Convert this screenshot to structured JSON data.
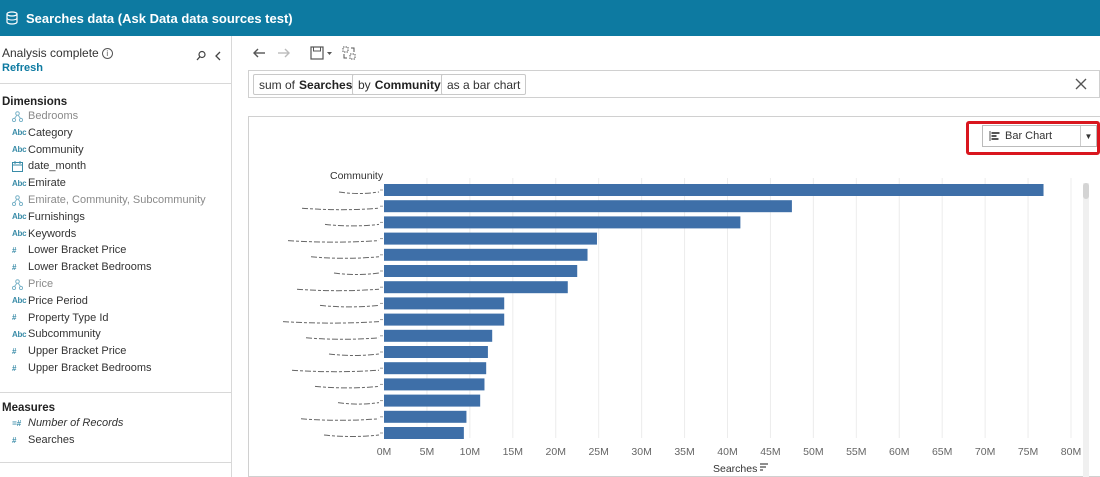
{
  "app": {
    "title": "Searches data (Ask Data data sources test)"
  },
  "sidebar": {
    "status": "Analysis complete",
    "refresh_label": "Refresh",
    "dimensions_label": "Dimensions",
    "dimensions": [
      {
        "label": "Bedrooms",
        "type": "hierarchy",
        "dim": true
      },
      {
        "label": "Category",
        "type": "abc",
        "dim": false
      },
      {
        "label": "Community",
        "type": "abc",
        "dim": false
      },
      {
        "label": "date_month",
        "type": "date",
        "dim": false
      },
      {
        "label": "Emirate",
        "type": "abc",
        "dim": false
      },
      {
        "label": "Emirate, Community, Subcommunity",
        "type": "hierarchy",
        "dim": true
      },
      {
        "label": "Furnishings",
        "type": "abc",
        "dim": false
      },
      {
        "label": "Keywords",
        "type": "abc",
        "dim": false
      },
      {
        "label": "Lower Bracket Price",
        "type": "number",
        "dim": false
      },
      {
        "label": "Lower Bracket Bedrooms",
        "type": "number",
        "dim": false
      },
      {
        "label": "Price",
        "type": "hierarchy",
        "dim": true
      },
      {
        "label": "Price Period",
        "type": "abc",
        "dim": false
      },
      {
        "label": "Property Type Id",
        "type": "number",
        "dim": false
      },
      {
        "label": "Subcommunity",
        "type": "abc",
        "dim": false
      },
      {
        "label": "Upper Bracket Price",
        "type": "number",
        "dim": false
      },
      {
        "label": "Upper Bracket Bedrooms",
        "type": "number",
        "dim": false
      }
    ],
    "measures_label": "Measures",
    "measures": [
      {
        "label": "Number of Records",
        "type": "number-calc",
        "italic": true
      },
      {
        "label": "Searches",
        "type": "number",
        "italic": false
      }
    ]
  },
  "query": {
    "pill1_prefix": "sum of",
    "pill1_field": "Searches",
    "pill2_prefix": "by",
    "pill2_field": "Community",
    "pill3": "as a bar chart"
  },
  "viz": {
    "chart_type_label": "Bar Chart"
  },
  "colors": {
    "titlebar": "#0d7aa1",
    "bar": "#3e6fa8",
    "highlight": "#d9161e"
  },
  "chart_data": {
    "type": "bar",
    "orientation": "horizontal",
    "category_axis_label": "Community",
    "xlabel": "Searches",
    "categories_redacted": true,
    "values": [
      76.8,
      47.5,
      41.5,
      24.8,
      23.7,
      22.5,
      21.4,
      14.0,
      14.0,
      12.6,
      12.1,
      11.9,
      11.7,
      11.2,
      9.6,
      9.3
    ],
    "value_unit": "M",
    "xlim": [
      0,
      80
    ],
    "xticks": [
      "0M",
      "5M",
      "10M",
      "15M",
      "20M",
      "25M",
      "30M",
      "35M",
      "40M",
      "45M",
      "50M",
      "55M",
      "60M",
      "65M",
      "70M",
      "75M",
      "80M"
    ],
    "sorted": "descending",
    "grid": true
  }
}
